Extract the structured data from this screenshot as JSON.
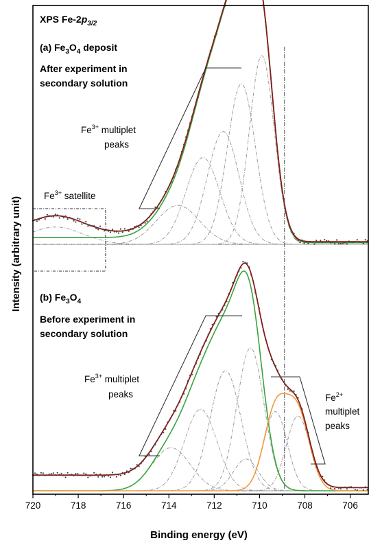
{
  "chart_data": {
    "type": "line",
    "title": "XPS Fe-2p3/2",
    "title_parts": {
      "main": "XPS Fe-2",
      "ital": "p",
      "sub": "3/2"
    },
    "xlabel": "Binding energy (eV)",
    "ylabel": "Intensity (arbitrary unit)",
    "xlim": [
      720,
      705.2
    ],
    "x_reversed": true,
    "x_ticks": [
      720,
      718,
      716,
      714,
      712,
      710,
      708,
      706
    ],
    "reference_line_ev": 708.9,
    "panels": [
      {
        "id": "a",
        "label_parts": {
          "pre": "(a) Fe",
          "s1": "3",
          "mid": "O",
          "s2": "4",
          "post": " deposit"
        },
        "label": "(a) Fe3O4 deposit",
        "sublabel_lines": [
          "After experiment in",
          "secondary solution"
        ],
        "annotations": [
          {
            "text_base": "Fe",
            "text_sup": "3+",
            "text_rest": " multiplet",
            "line2": "peaks"
          },
          {
            "text_base": "Fe",
            "text_sup": "3+",
            "text_rest": " satellite",
            "line2": ""
          }
        ],
        "fe3_components": [
          {
            "center": 713.6,
            "amplitude": 0.18,
            "width": 0.95
          },
          {
            "center": 712.5,
            "amplitude": 0.4,
            "width": 0.75
          },
          {
            "center": 711.6,
            "amplitude": 0.52,
            "width": 0.7
          },
          {
            "center": 710.8,
            "amplitude": 0.74,
            "width": 0.62
          },
          {
            "center": 709.9,
            "amplitude": 0.87,
            "width": 0.55
          }
        ],
        "satellite": {
          "center": 719.0,
          "amplitude": 0.08,
          "width": 1.2
        },
        "fe3_envelope_color": "#3aa33a",
        "total_envelope_color": "#8b1a1a"
      },
      {
        "id": "b",
        "label_parts": {
          "pre": "(b) Fe",
          "s1": "3",
          "mid": "O",
          "s2": "4",
          "post": ""
        },
        "label": "(b) Fe3O4",
        "sublabel_lines": [
          "Before experiment in",
          "secondary solution"
        ],
        "annotations": [
          {
            "text_base": "Fe",
            "text_sup": "3+",
            "text_rest": " multiplet",
            "line2": "peaks"
          },
          {
            "text_base": "Fe",
            "text_sup": "2+",
            "text_rest": "",
            "line2": "multiplet",
            "line3": "peaks"
          }
        ],
        "fe3_components": [
          {
            "center": 713.9,
            "amplitude": 0.19,
            "width": 0.85
          },
          {
            "center": 712.6,
            "amplitude": 0.36,
            "width": 0.72
          },
          {
            "center": 711.5,
            "amplitude": 0.53,
            "width": 0.68
          },
          {
            "center": 710.4,
            "amplitude": 0.63,
            "width": 0.6
          },
          {
            "center": 710.6,
            "amplitude": 0.14,
            "width": 0.55
          }
        ],
        "fe2_components": [
          {
            "center": 709.3,
            "amplitude": 0.35,
            "width": 0.52
          },
          {
            "center": 708.3,
            "amplitude": 0.33,
            "width": 0.52
          }
        ],
        "fe3_envelope_color": "#3aa33a",
        "fe2_envelope_color": "#f39a3d",
        "total_envelope_color": "#8b1a1a"
      }
    ],
    "component_color": "#9a9a9a",
    "data_point_color": "#444444"
  }
}
